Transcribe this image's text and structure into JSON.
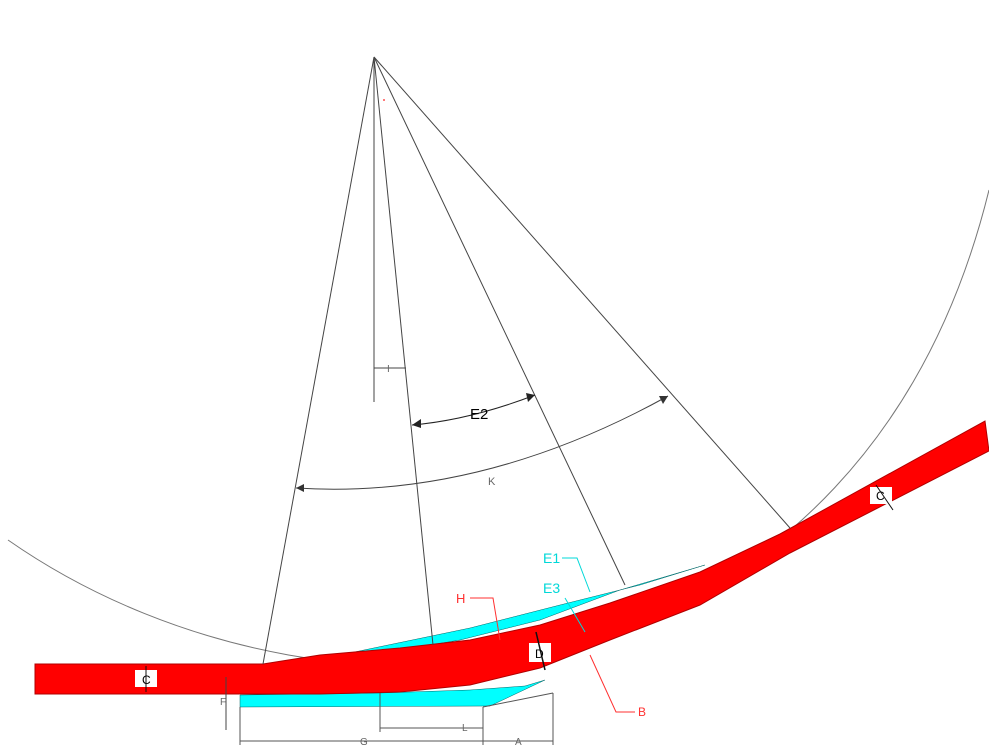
{
  "diagram": {
    "labels": {
      "angle_e2": "E2",
      "angle_k": "K",
      "offset_i": "I",
      "thickness_c_left": "C",
      "thickness_c_right": "C",
      "thickness_d": "D",
      "leader_h": "H",
      "leader_e1": "E1",
      "leader_e3": "E3",
      "leader_b": "B",
      "dim_f": "F",
      "dim_l": "L",
      "dim_g": "G",
      "dim_a": "A"
    },
    "colors": {
      "strip": "#ff0000",
      "strip_edge": "#c00000",
      "cyan_region": "#00ffff",
      "cyan_label": "#00d8d8",
      "red_label": "#ff3030",
      "line": "#333333",
      "black_label": "#000000"
    }
  }
}
